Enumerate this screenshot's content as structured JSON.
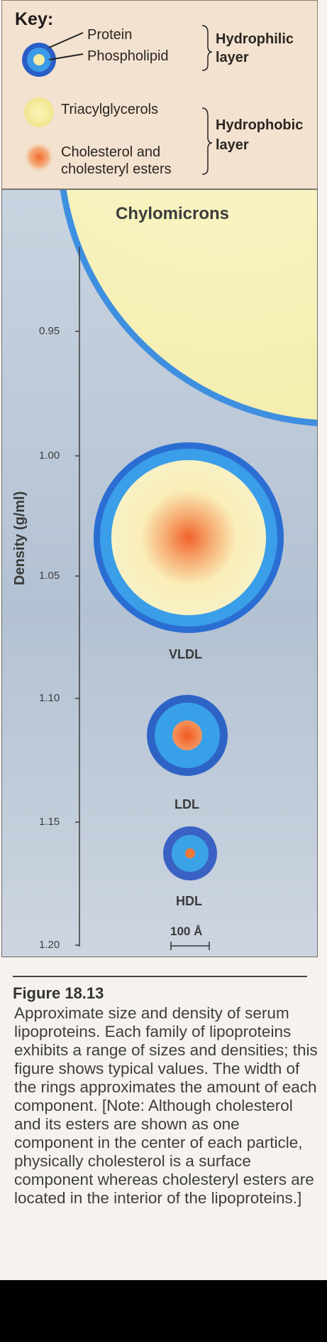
{
  "key": {
    "title": "Key:",
    "protein": "Protein",
    "phospholipid": "Phospholipid",
    "triacylglycerols": "Triacylglycerols",
    "cholesterol_line1": "Cholesterol and",
    "cholesterol_line2": "cholesteryl esters",
    "hydrophilic_line1": "Hydrophilic",
    "hydrophilic_line2": "layer",
    "hydrophobic_line1": "Hydrophobic",
    "hydrophobic_line2": "layer"
  },
  "axis": {
    "label": "Density (g/ml)",
    "ticks": [
      "0.95",
      "1.00",
      "1.05",
      "1.10",
      "1.15",
      "1.20"
    ]
  },
  "particles": {
    "chylomicrons": "Chylomicrons",
    "vldl": "VLDL",
    "ldl": "LDL",
    "hdl": "HDL",
    "scale": "100 Å"
  },
  "caption": {
    "title": "Figure 18.13",
    "text": "Approximate size and density of serum lipoproteins. Each family of lipoproteins exhibits a range of sizes and densities; this figure shows typical values. The width of the rings approximates the amount of each component. [Note: Although cholesterol and its esters are shown as one component in the center of each particle, physically cholesterol is a surface component whereas cholesteryl esters are located in the interior of the lipoproteins.]"
  },
  "colors": {
    "protein": "#1f5fc8",
    "phospholipid": "#3c9be8",
    "triacylglycerol": "#f4ecaf",
    "cholesterol": "#f07a3a"
  }
}
